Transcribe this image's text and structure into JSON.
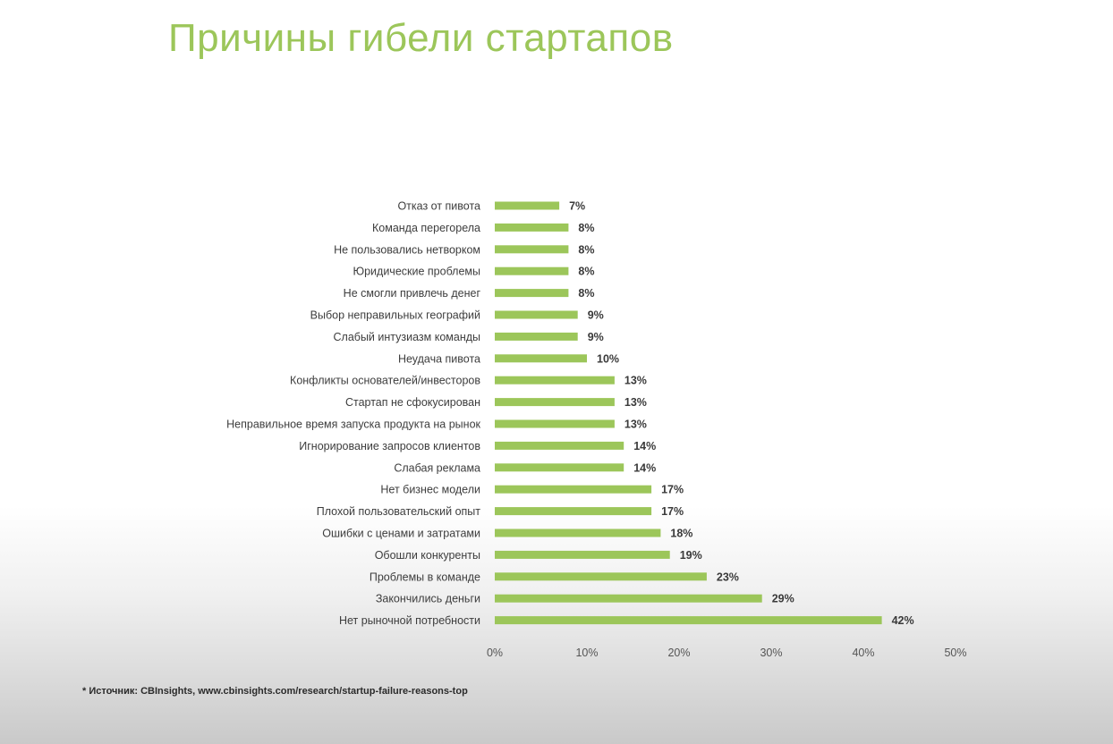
{
  "title": "Причины гибели стартапов",
  "source_note": "* Источник: CBInsights, www.cbinsights.com/research/startup-failure-reasons-top",
  "colors": {
    "title": "#9cc65a",
    "bar": "#9cc65a"
  },
  "chart_data": {
    "type": "bar",
    "orientation": "horizontal",
    "categories": [
      "Отказ от пивота",
      "Команда перегорела",
      "Не пользовались нетворком",
      "Юридические проблемы",
      "Не смогли привлечь денег",
      "Выбор неправильных географий",
      "Слабый интузиазм команды",
      "Неудача пивота",
      "Конфликты основателей/инвесторов",
      "Стартап не сфокусирован",
      "Неправильное время запуска продукта на рынок",
      "Игнорирование запросов клиентов",
      "Слабая реклама",
      "Нет бизнес модели",
      "Плохой пользовательский опыт",
      "Ошибки с ценами и затратами",
      "Обошли конкуренты",
      "Проблемы в команде",
      "Закончились деньги",
      "Нет рыночной потребности"
    ],
    "values": [
      7,
      8,
      8,
      8,
      8,
      9,
      9,
      10,
      13,
      13,
      13,
      14,
      14,
      17,
      17,
      18,
      19,
      23,
      29,
      42
    ],
    "value_labels": [
      "7%",
      "8%",
      "8%",
      "8%",
      "8%",
      "9%",
      "9%",
      "10%",
      "13%",
      "13%",
      "13%",
      "14%",
      "14%",
      "17%",
      "17%",
      "18%",
      "19%",
      "23%",
      "29%",
      "42%"
    ],
    "xlim": [
      0,
      50
    ],
    "x_ticks": [
      0,
      10,
      20,
      30,
      40,
      50
    ],
    "x_tick_labels": [
      "0%",
      "10%",
      "20%",
      "30%",
      "40%",
      "50%"
    ],
    "grid": false,
    "legend": "none"
  }
}
